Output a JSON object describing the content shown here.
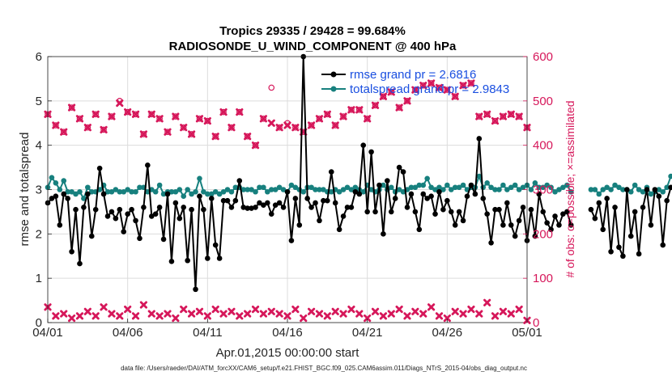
{
  "chart_data": {
    "type": "line",
    "title_line1": "Tropics 29335 / 29428 = 99.684%",
    "title_line2": "RADIOSONDE_U_WIND_COMPONENT @ 400 hPa",
    "xlabel": "Apr.01,2015 00:00:00 start",
    "ylabel_left": "rmse and totalspread",
    "ylabel_right": "# of obs: o=possible; ×=assimilated",
    "footer": "data file: /Users/raeder/DAI/ATM_forcXX/CAM6_setup/f.e21.FHIST_BGC.f09_025.CAM6assim.011/Diags_NTrS_2015-04/obs_diag_output.nc",
    "x_tick_labels": [
      "04/01",
      "04/06",
      "04/11",
      "04/16",
      "04/21",
      "04/26",
      "05/01"
    ],
    "x_tick_days": [
      0,
      5,
      10,
      15,
      20,
      25,
      30
    ],
    "xlim": [
      0,
      30
    ],
    "ylim_left": [
      0,
      6
    ],
    "y_ticks_left": [
      "0",
      "1",
      "2",
      "3",
      "4",
      "5",
      "6"
    ],
    "ylim_right": [
      0,
      600
    ],
    "y_ticks_right": [
      "0",
      "100",
      "200",
      "300",
      "400",
      "500",
      "600"
    ],
    "grid": true,
    "legend_position": "top-right",
    "colors": {
      "rmse": "#000000",
      "spread": "#17807e",
      "obs": "#d6175a",
      "grid": "#dcdcdc"
    },
    "series": [
      {
        "name": "rmse",
        "legend_label": "rmse grand pr = 2.6816",
        "x_start": 0,
        "x_step": 0.25,
        "values": [
          2.7,
          2.8,
          2.85,
          2.2,
          2.9,
          2.8,
          1.6,
          2.55,
          1.33,
          2.6,
          2.9,
          1.95,
          2.55,
          3.48,
          2.9,
          2.4,
          2.5,
          2.35,
          2.55,
          2.05,
          2.45,
          2.55,
          2.3,
          1.9,
          2.6,
          3.55,
          2.4,
          2.45,
          2.6,
          1.88,
          2.9,
          1.38,
          2.7,
          2.35,
          2.6,
          1.4,
          2.55,
          0.75,
          2.85,
          2.55,
          1.45,
          2.8,
          1.75,
          1.45,
          2.75,
          2.75,
          2.6,
          2.75,
          3.2,
          2.6,
          2.58,
          2.58,
          2.6,
          2.7,
          2.65,
          2.7,
          2.45,
          2.65,
          2.7,
          2.6,
          2.95,
          1.85,
          2.8,
          2.2,
          6.0,
          2.8,
          2.6,
          2.7,
          2.3,
          2.75,
          2.75,
          3.4,
          2.7,
          2.1,
          2.4,
          2.6,
          2.6,
          2.95,
          2.9,
          4.0,
          2.5,
          3.85,
          2.5,
          3.1,
          2.0,
          3.2,
          2.5,
          2.8,
          3.5,
          3.4,
          2.6,
          2.9,
          2.5,
          2.1,
          2.9,
          2.8,
          2.85,
          2.45,
          2.95,
          2.55,
          2.75,
          2.5,
          2.2,
          2.5,
          2.3,
          2.85,
          3.1,
          2.9,
          4.15,
          2.8,
          2.45,
          1.8,
          2.55,
          2.55,
          2.2,
          2.7,
          2.2,
          1.95,
          2.3,
          2.6,
          1.85,
          2.55,
          1.95,
          2.9,
          2.5,
          2.25,
          2.1,
          2.4,
          2.2,
          2.45,
          2.5,
          2.2,
          null,
          null,
          null,
          null,
          2.55,
          2.35,
          2.7,
          2.1,
          2.8,
          1.6,
          2.6,
          1.7,
          1.5,
          3.0,
          1.95,
          2.5,
          1.55,
          2.6,
          3.0,
          2.2,
          3.0,
          2.85,
          1.75,
          2.75,
          3.05
        ]
      },
      {
        "name": "totalspread",
        "legend_label": "totalspread grand pr = 2.9843",
        "x_start": 0,
        "x_step": 0.25,
        "values": [
          3.05,
          3.27,
          3.15,
          3.0,
          3.2,
          2.95,
          2.95,
          2.9,
          2.95,
          2.8,
          3.05,
          2.95,
          2.95,
          3.0,
          3.1,
          2.95,
          2.95,
          3.0,
          2.95,
          2.95,
          3.0,
          2.95,
          2.95,
          3.05,
          3.05,
          2.95,
          3.0,
          2.95,
          3.1,
          2.9,
          2.95,
          2.95,
          2.95,
          3.0,
          2.85,
          3.0,
          2.9,
          2.95,
          3.25,
          2.95,
          2.9,
          2.9,
          2.95,
          2.9,
          2.95,
          3.0,
          2.95,
          3.05,
          3.05,
          3.0,
          3.0,
          3.0,
          2.95,
          3.05,
          3.05,
          2.95,
          3.0,
          3.0,
          3.05,
          3.0,
          2.95,
          3.1,
          3.05,
          3.0,
          2.95,
          3.05,
          3.05,
          3.0,
          3.0,
          3.0,
          2.95,
          2.95,
          3.0,
          2.95,
          3.0,
          3.05,
          3.0,
          3.05,
          3.0,
          2.95,
          3.1,
          3.0,
          2.95,
          3.0,
          3.1,
          3.0,
          3.05,
          2.95,
          3.0,
          2.95,
          3.0,
          3.05,
          3.05,
          3.1,
          3.1,
          3.25,
          3.05,
          3.0,
          3.05,
          3.0,
          3.1,
          3.0,
          3.05,
          3.05,
          3.1,
          3.0,
          3.05,
          3.05,
          3.3,
          3.05,
          3.15,
          3.05,
          3.0,
          3.0,
          3.1,
          3.0,
          3.05,
          3.1,
          3.0,
          3.05,
          3.1,
          3.0,
          3.15,
          3.05,
          3.05,
          3.1,
          3.05,
          2.95,
          3.0,
          3.05,
          3.1,
          2.95,
          null,
          null,
          null,
          null,
          3.0,
          3.0,
          2.9,
          3.0,
          3.05,
          3.0,
          3.1,
          3.05,
          3.0,
          3.0,
          2.95,
          3.1,
          3.0,
          2.95,
          3.05,
          2.9,
          2.95,
          3.0,
          2.95,
          3.05,
          3.3
        ]
      },
      {
        "name": "obs_possible",
        "marker": "o",
        "axis": "right",
        "x_start": 0,
        "x_step": 0.5,
        "values": [
          470,
          445,
          430,
          485,
          460,
          440,
          470,
          435,
          465,
          500,
          475,
          470,
          425,
          470,
          460,
          430,
          465,
          440,
          425,
          460,
          455,
          420,
          475,
          440,
          475,
          420,
          400,
          460,
          530,
          440,
          450,
          440,
          430,
          445,
          460,
          470,
          445,
          465,
          480,
          480,
          460,
          490,
          510,
          520,
          485,
          500,
          525,
          535,
          540,
          530,
          525,
          510,
          535,
          540,
          465,
          470,
          455,
          465,
          470,
          465,
          440
        ]
      },
      {
        "name": "obs_assimilated",
        "marker": "x",
        "axis": "right",
        "x_start": 0,
        "x_step": 0.5,
        "values": [
          470,
          445,
          430,
          485,
          460,
          440,
          470,
          435,
          465,
          495,
          475,
          470,
          425,
          470,
          460,
          430,
          465,
          440,
          425,
          460,
          455,
          420,
          475,
          440,
          475,
          420,
          400,
          460,
          450,
          440,
          445,
          440,
          430,
          445,
          460,
          470,
          445,
          465,
          480,
          480,
          460,
          490,
          510,
          520,
          485,
          500,
          525,
          535,
          540,
          530,
          525,
          510,
          535,
          540,
          465,
          470,
          455,
          465,
          470,
          465,
          440
        ]
      },
      {
        "name": "obs_bottom",
        "marker": "x",
        "axis": "right",
        "x_start": 0,
        "x_step": 0.5,
        "values": [
          35,
          15,
          20,
          10,
          15,
          25,
          15,
          35,
          20,
          15,
          30,
          15,
          40,
          20,
          15,
          20,
          10,
          30,
          20,
          25,
          15,
          30,
          20,
          25,
          15,
          20,
          30,
          20,
          25,
          20,
          15,
          30,
          10,
          25,
          20,
          15,
          25,
          20,
          30,
          20,
          10,
          25,
          15,
          20,
          30,
          15,
          25,
          20,
          35,
          15,
          10,
          25,
          20,
          30,
          20,
          45,
          15,
          25,
          20,
          30,
          5
        ]
      }
    ]
  }
}
